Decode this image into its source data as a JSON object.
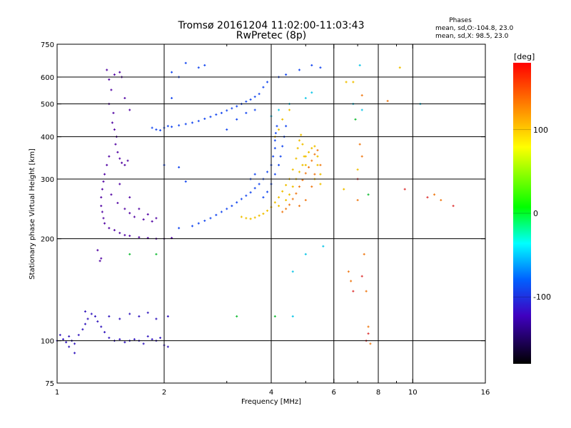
{
  "chart_data": {
    "type": "scatter",
    "title": "Tromsø 20161204 11:02:00-11:03:43",
    "subtitle": "RwPretec (8p)",
    "phase_box": {
      "heading": "Phases",
      "line_o": "mean, sd,O:-104.8, 23.0",
      "line_x": "mean, sd,X:  98.5, 23.0"
    },
    "xlabel": "Frequency [MHz]",
    "ylabel": "Stationary phase Virtual Height [km]",
    "x_scale": "log",
    "y_scale": "log",
    "xlim": [
      1,
      16
    ],
    "ylim": [
      75,
      750
    ],
    "x_ticks": [
      {
        "value": 1,
        "label": "1"
      },
      {
        "value": 2,
        "label": "2"
      },
      {
        "value": 4,
        "label": "4"
      },
      {
        "value": 6,
        "label": "6"
      },
      {
        "value": 8,
        "label": "8"
      },
      {
        "value": 10,
        "label": "10"
      },
      {
        "value": 16,
        "label": "16"
      }
    ],
    "x_gridlines": [
      2,
      4,
      6,
      8,
      10
    ],
    "x_minor_ticks": [
      3,
      5,
      7,
      9
    ],
    "y_ticks": [
      {
        "value": 75,
        "label": "75"
      },
      {
        "value": 100,
        "label": "100"
      },
      {
        "value": 200,
        "label": "200"
      },
      {
        "value": 300,
        "label": "300"
      },
      {
        "value": 400,
        "label": "400"
      },
      {
        "value": 500,
        "label": "500"
      },
      {
        "value": 600,
        "label": "600"
      },
      {
        "value": 750,
        "label": "750"
      }
    ],
    "y_gridlines": [
      100,
      200,
      300,
      400,
      500,
      600
    ],
    "grid": true,
    "colorbar": {
      "unit": "[deg]",
      "range": [
        -180,
        180
      ],
      "ticks": [
        {
          "value": 100,
          "label": "100"
        },
        {
          "value": 0,
          "label": "0"
        },
        {
          "value": -100,
          "label": "-100"
        }
      ]
    },
    "series": [
      {
        "color": "#5a10a8",
        "points": [
          [
            1.38,
            630
          ],
          [
            1.4,
            590
          ],
          [
            1.42,
            550
          ],
          [
            1.4,
            500
          ],
          [
            1.44,
            470
          ],
          [
            1.43,
            440
          ],
          [
            1.45,
            420
          ],
          [
            1.47,
            400
          ],
          [
            1.46,
            380
          ],
          [
            1.48,
            360
          ],
          [
            1.5,
            345
          ],
          [
            1.52,
            335
          ],
          [
            1.55,
            330
          ],
          [
            1.58,
            340
          ],
          [
            1.52,
            600
          ],
          [
            1.5,
            620
          ],
          [
            1.45,
            610
          ],
          [
            1.55,
            520
          ],
          [
            1.6,
            480
          ],
          [
            1.4,
            350
          ],
          [
            1.38,
            330
          ],
          [
            1.36,
            310
          ],
          [
            1.35,
            295
          ],
          [
            1.34,
            280
          ],
          [
            1.33,
            265
          ],
          [
            1.33,
            250
          ],
          [
            1.34,
            240
          ],
          [
            1.35,
            230
          ],
          [
            1.36,
            222
          ],
          [
            1.4,
            215
          ],
          [
            1.45,
            212
          ],
          [
            1.5,
            208
          ],
          [
            1.55,
            205
          ],
          [
            1.6,
            204
          ],
          [
            1.7,
            202
          ],
          [
            1.8,
            201
          ],
          [
            1.9,
            200
          ],
          [
            2.0,
            200
          ],
          [
            2.1,
            201
          ],
          [
            1.42,
            270
          ],
          [
            1.48,
            255
          ],
          [
            1.55,
            245
          ],
          [
            1.6,
            238
          ],
          [
            1.65,
            232
          ],
          [
            1.75,
            228
          ],
          [
            1.85,
            225
          ],
          [
            1.5,
            290
          ],
          [
            1.6,
            265
          ],
          [
            1.7,
            245
          ],
          [
            1.8,
            236
          ],
          [
            1.9,
            230
          ],
          [
            1.3,
            185
          ],
          [
            1.32,
            172
          ],
          [
            1.33,
            175
          ]
        ]
      },
      {
        "color": "#3a20c0",
        "points": [
          [
            1.02,
            104
          ],
          [
            1.04,
            101
          ],
          [
            1.06,
            99
          ],
          [
            1.08,
            103
          ],
          [
            1.1,
            100
          ],
          [
            1.12,
            98
          ],
          [
            1.15,
            104
          ],
          [
            1.18,
            108
          ],
          [
            1.2,
            112
          ],
          [
            1.22,
            116
          ],
          [
            1.25,
            120
          ],
          [
            1.28,
            118
          ],
          [
            1.3,
            114
          ],
          [
            1.33,
            110
          ],
          [
            1.36,
            106
          ],
          [
            1.4,
            102
          ],
          [
            1.45,
            100
          ],
          [
            1.5,
            101
          ],
          [
            1.55,
            99
          ],
          [
            1.6,
            100
          ],
          [
            1.65,
            101
          ],
          [
            1.7,
            100
          ],
          [
            1.75,
            98
          ],
          [
            1.8,
            103
          ],
          [
            1.85,
            101
          ],
          [
            1.9,
            100
          ],
          [
            1.95,
            102
          ],
          [
            2.0,
            97
          ],
          [
            2.05,
            96
          ],
          [
            1.2,
            122
          ],
          [
            1.4,
            118
          ],
          [
            1.5,
            116
          ],
          [
            1.6,
            120
          ],
          [
            1.7,
            118
          ],
          [
            1.8,
            121
          ],
          [
            1.9,
            116
          ],
          [
            2.05,
            118
          ],
          [
            1.0,
            100
          ],
          [
            1.08,
            96
          ],
          [
            1.12,
            92
          ]
        ]
      },
      {
        "color": "#2050f0",
        "points": [
          [
            1.85,
            425
          ],
          [
            1.9,
            420
          ],
          [
            1.95,
            418
          ],
          [
            2.0,
            425
          ],
          [
            2.05,
            430
          ],
          [
            2.1,
            428
          ],
          [
            2.2,
            432
          ],
          [
            2.3,
            436
          ],
          [
            2.4,
            440
          ],
          [
            2.5,
            445
          ],
          [
            2.6,
            452
          ],
          [
            2.7,
            458
          ],
          [
            2.8,
            465
          ],
          [
            2.9,
            470
          ],
          [
            3.0,
            478
          ],
          [
            3.1,
            485
          ],
          [
            3.2,
            492
          ],
          [
            3.3,
            500
          ],
          [
            3.4,
            508
          ],
          [
            3.5,
            515
          ],
          [
            3.6,
            525
          ],
          [
            3.7,
            535
          ],
          [
            2.1,
            620
          ],
          [
            2.5,
            640
          ],
          [
            2.6,
            650
          ],
          [
            2.3,
            660
          ],
          [
            2.2,
            600
          ],
          [
            2.1,
            520
          ],
          [
            2.0,
            330
          ],
          [
            2.2,
            325
          ],
          [
            2.3,
            295
          ],
          [
            2.2,
            215
          ],
          [
            2.4,
            218
          ],
          [
            2.5,
            222
          ],
          [
            2.6,
            226
          ],
          [
            2.7,
            230
          ],
          [
            2.8,
            235
          ],
          [
            2.9,
            240
          ],
          [
            3.0,
            245
          ],
          [
            3.1,
            250
          ],
          [
            3.2,
            256
          ],
          [
            3.3,
            262
          ],
          [
            3.4,
            268
          ],
          [
            3.5,
            274
          ],
          [
            3.6,
            282
          ],
          [
            3.7,
            290
          ],
          [
            3.8,
            300
          ],
          [
            3.9,
            315
          ],
          [
            4.0,
            330
          ],
          [
            4.05,
            350
          ],
          [
            4.1,
            370
          ],
          [
            4.1,
            390
          ],
          [
            4.12,
            410
          ],
          [
            4.15,
            430
          ],
          [
            3.8,
            265
          ],
          [
            3.9,
            275
          ],
          [
            4.0,
            290
          ],
          [
            4.1,
            310
          ],
          [
            4.2,
            330
          ],
          [
            4.25,
            350
          ],
          [
            4.3,
            375
          ],
          [
            4.35,
            400
          ],
          [
            4.4,
            430
          ],
          [
            3.5,
            300
          ],
          [
            3.6,
            310
          ],
          [
            3.0,
            420
          ],
          [
            3.2,
            450
          ],
          [
            3.4,
            470
          ],
          [
            3.6,
            480
          ],
          [
            3.8,
            560
          ],
          [
            3.9,
            580
          ],
          [
            4.2,
            600
          ],
          [
            4.4,
            610
          ],
          [
            4.8,
            630
          ],
          [
            5.2,
            650
          ],
          [
            5.5,
            640
          ]
        ]
      },
      {
        "color": "#18c8e8",
        "points": [
          [
            4.0,
            460
          ],
          [
            4.2,
            480
          ],
          [
            4.5,
            500
          ],
          [
            5.0,
            520
          ],
          [
            5.2,
            540
          ],
          [
            4.6,
            160
          ],
          [
            5.0,
            180
          ],
          [
            5.6,
            190
          ],
          [
            4.6,
            118
          ],
          [
            7.1,
            650
          ],
          [
            6.8,
            500
          ],
          [
            7.2,
            480
          ],
          [
            10.5,
            500
          ]
        ]
      },
      {
        "color": "#f0c000",
        "points": [
          [
            3.3,
            232
          ],
          [
            3.4,
            230
          ],
          [
            3.5,
            229
          ],
          [
            3.6,
            231
          ],
          [
            3.7,
            234
          ],
          [
            3.8,
            237
          ],
          [
            3.9,
            242
          ],
          [
            4.0,
            248
          ],
          [
            4.1,
            256
          ],
          [
            4.2,
            265
          ],
          [
            4.3,
            276
          ],
          [
            4.4,
            288
          ],
          [
            4.5,
            300
          ],
          [
            4.6,
            320
          ],
          [
            4.7,
            345
          ],
          [
            4.75,
            370
          ],
          [
            4.8,
            390
          ],
          [
            4.85,
            405
          ],
          [
            4.9,
            380
          ],
          [
            4.95,
            350
          ],
          [
            5.0,
            330
          ],
          [
            4.2,
            250
          ],
          [
            4.4,
            260
          ],
          [
            4.5,
            270
          ],
          [
            4.6,
            285
          ],
          [
            4.7,
            300
          ],
          [
            4.8,
            315
          ],
          [
            4.9,
            330
          ],
          [
            5.0,
            350
          ],
          [
            5.1,
            360
          ],
          [
            5.2,
            370
          ],
          [
            5.3,
            375
          ],
          [
            5.4,
            350
          ],
          [
            5.4,
            330
          ],
          [
            5.5,
            310
          ],
          [
            5.5,
            290
          ],
          [
            5.3,
            300
          ],
          [
            4.3,
            450
          ],
          [
            4.5,
            480
          ],
          [
            4.1,
            400
          ],
          [
            4.2,
            420
          ],
          [
            6.8,
            580
          ],
          [
            6.5,
            580
          ],
          [
            9.2,
            640
          ],
          [
            6.4,
            280
          ],
          [
            7.0,
            320
          ]
        ]
      },
      {
        "color": "#f08020",
        "points": [
          [
            4.3,
            240
          ],
          [
            4.4,
            245
          ],
          [
            4.5,
            252
          ],
          [
            4.6,
            262
          ],
          [
            4.7,
            272
          ],
          [
            4.8,
            285
          ],
          [
            4.9,
            298
          ],
          [
            5.0,
            312
          ],
          [
            5.1,
            325
          ],
          [
            5.2,
            340
          ],
          [
            5.3,
            355
          ],
          [
            5.4,
            365
          ],
          [
            4.8,
            250
          ],
          [
            5.0,
            260
          ],
          [
            5.2,
            285
          ],
          [
            5.3,
            310
          ],
          [
            5.5,
            330
          ],
          [
            7.2,
            530
          ],
          [
            8.5,
            510
          ],
          [
            7.1,
            380
          ],
          [
            7.2,
            350
          ],
          [
            7.0,
            260
          ],
          [
            7.3,
            180
          ],
          [
            7.4,
            140
          ],
          [
            7.5,
            110
          ],
          [
            7.6,
            98
          ],
          [
            6.6,
            160
          ],
          [
            6.7,
            150
          ],
          [
            11.5,
            270
          ],
          [
            12.0,
            260
          ]
        ]
      },
      {
        "color": "#e04040",
        "points": [
          [
            7.0,
            300
          ],
          [
            9.5,
            280
          ],
          [
            11.0,
            265
          ],
          [
            13.0,
            250
          ],
          [
            6.8,
            140
          ],
          [
            7.2,
            155
          ],
          [
            7.5,
            105
          ],
          [
            7.4,
            100
          ]
        ]
      },
      {
        "color": "#20c040",
        "points": [
          [
            1.6,
            180
          ],
          [
            1.9,
            180
          ],
          [
            3.2,
            118
          ],
          [
            4.1,
            118
          ],
          [
            6.9,
            450
          ],
          [
            7.5,
            270
          ]
        ]
      }
    ]
  }
}
